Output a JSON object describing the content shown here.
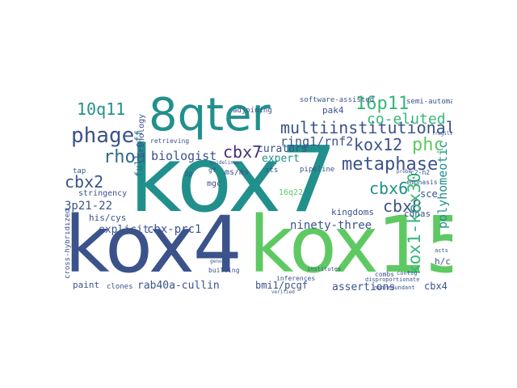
{
  "palette": {
    "teal": "#21908d",
    "green": "#5ec962",
    "navy": "#3b528b",
    "indigo": "#31688e",
    "purple": "#472d7b",
    "dark": "#440154",
    "cyan": "#2a788e",
    "lime": "#addc30",
    "yellow": "#bddf26",
    "sea": "#35b779"
  },
  "words": [
    "kox7",
    "kox4",
    "kox15",
    "8qter",
    "multiinstitutional",
    "phage",
    "rhou",
    "metaphase",
    "10q11",
    "16p11",
    "cbx7",
    "kox12",
    "phc",
    "cbx2",
    "cbx6",
    "cbx8",
    "kox1-kox30",
    "ring1/rnf2",
    "co-eluted",
    "polyhomeotic",
    "biologist",
    "curators",
    "expert",
    "3p21-22",
    "explicit",
    "cbx-prc1",
    "ninety-three",
    "rab40a-cullin",
    "bmi1/pcgf",
    "assertions",
    "cbx4",
    "paint",
    "his/cys",
    "h/c",
    "sce",
    "cdnas",
    "kingdoms",
    "stringency",
    "full-off",
    "mgc",
    "ms/ms",
    "16q22",
    "pipeline",
    "sts",
    "adjoining",
    "software-assisted",
    "pak4",
    "semi-automated",
    "orthology",
    "retrieving",
    "cross-hybridized",
    "clones",
    "building",
    "inferences",
    "combs",
    "tap",
    "gf",
    "emphasis",
    "c2-h2",
    "contig",
    "nonredundant",
    "disproportionate",
    "institutes",
    "3p",
    "fragility",
    "verified",
    "probe",
    "acts",
    "genomes",
    "guidelines"
  ]
}
